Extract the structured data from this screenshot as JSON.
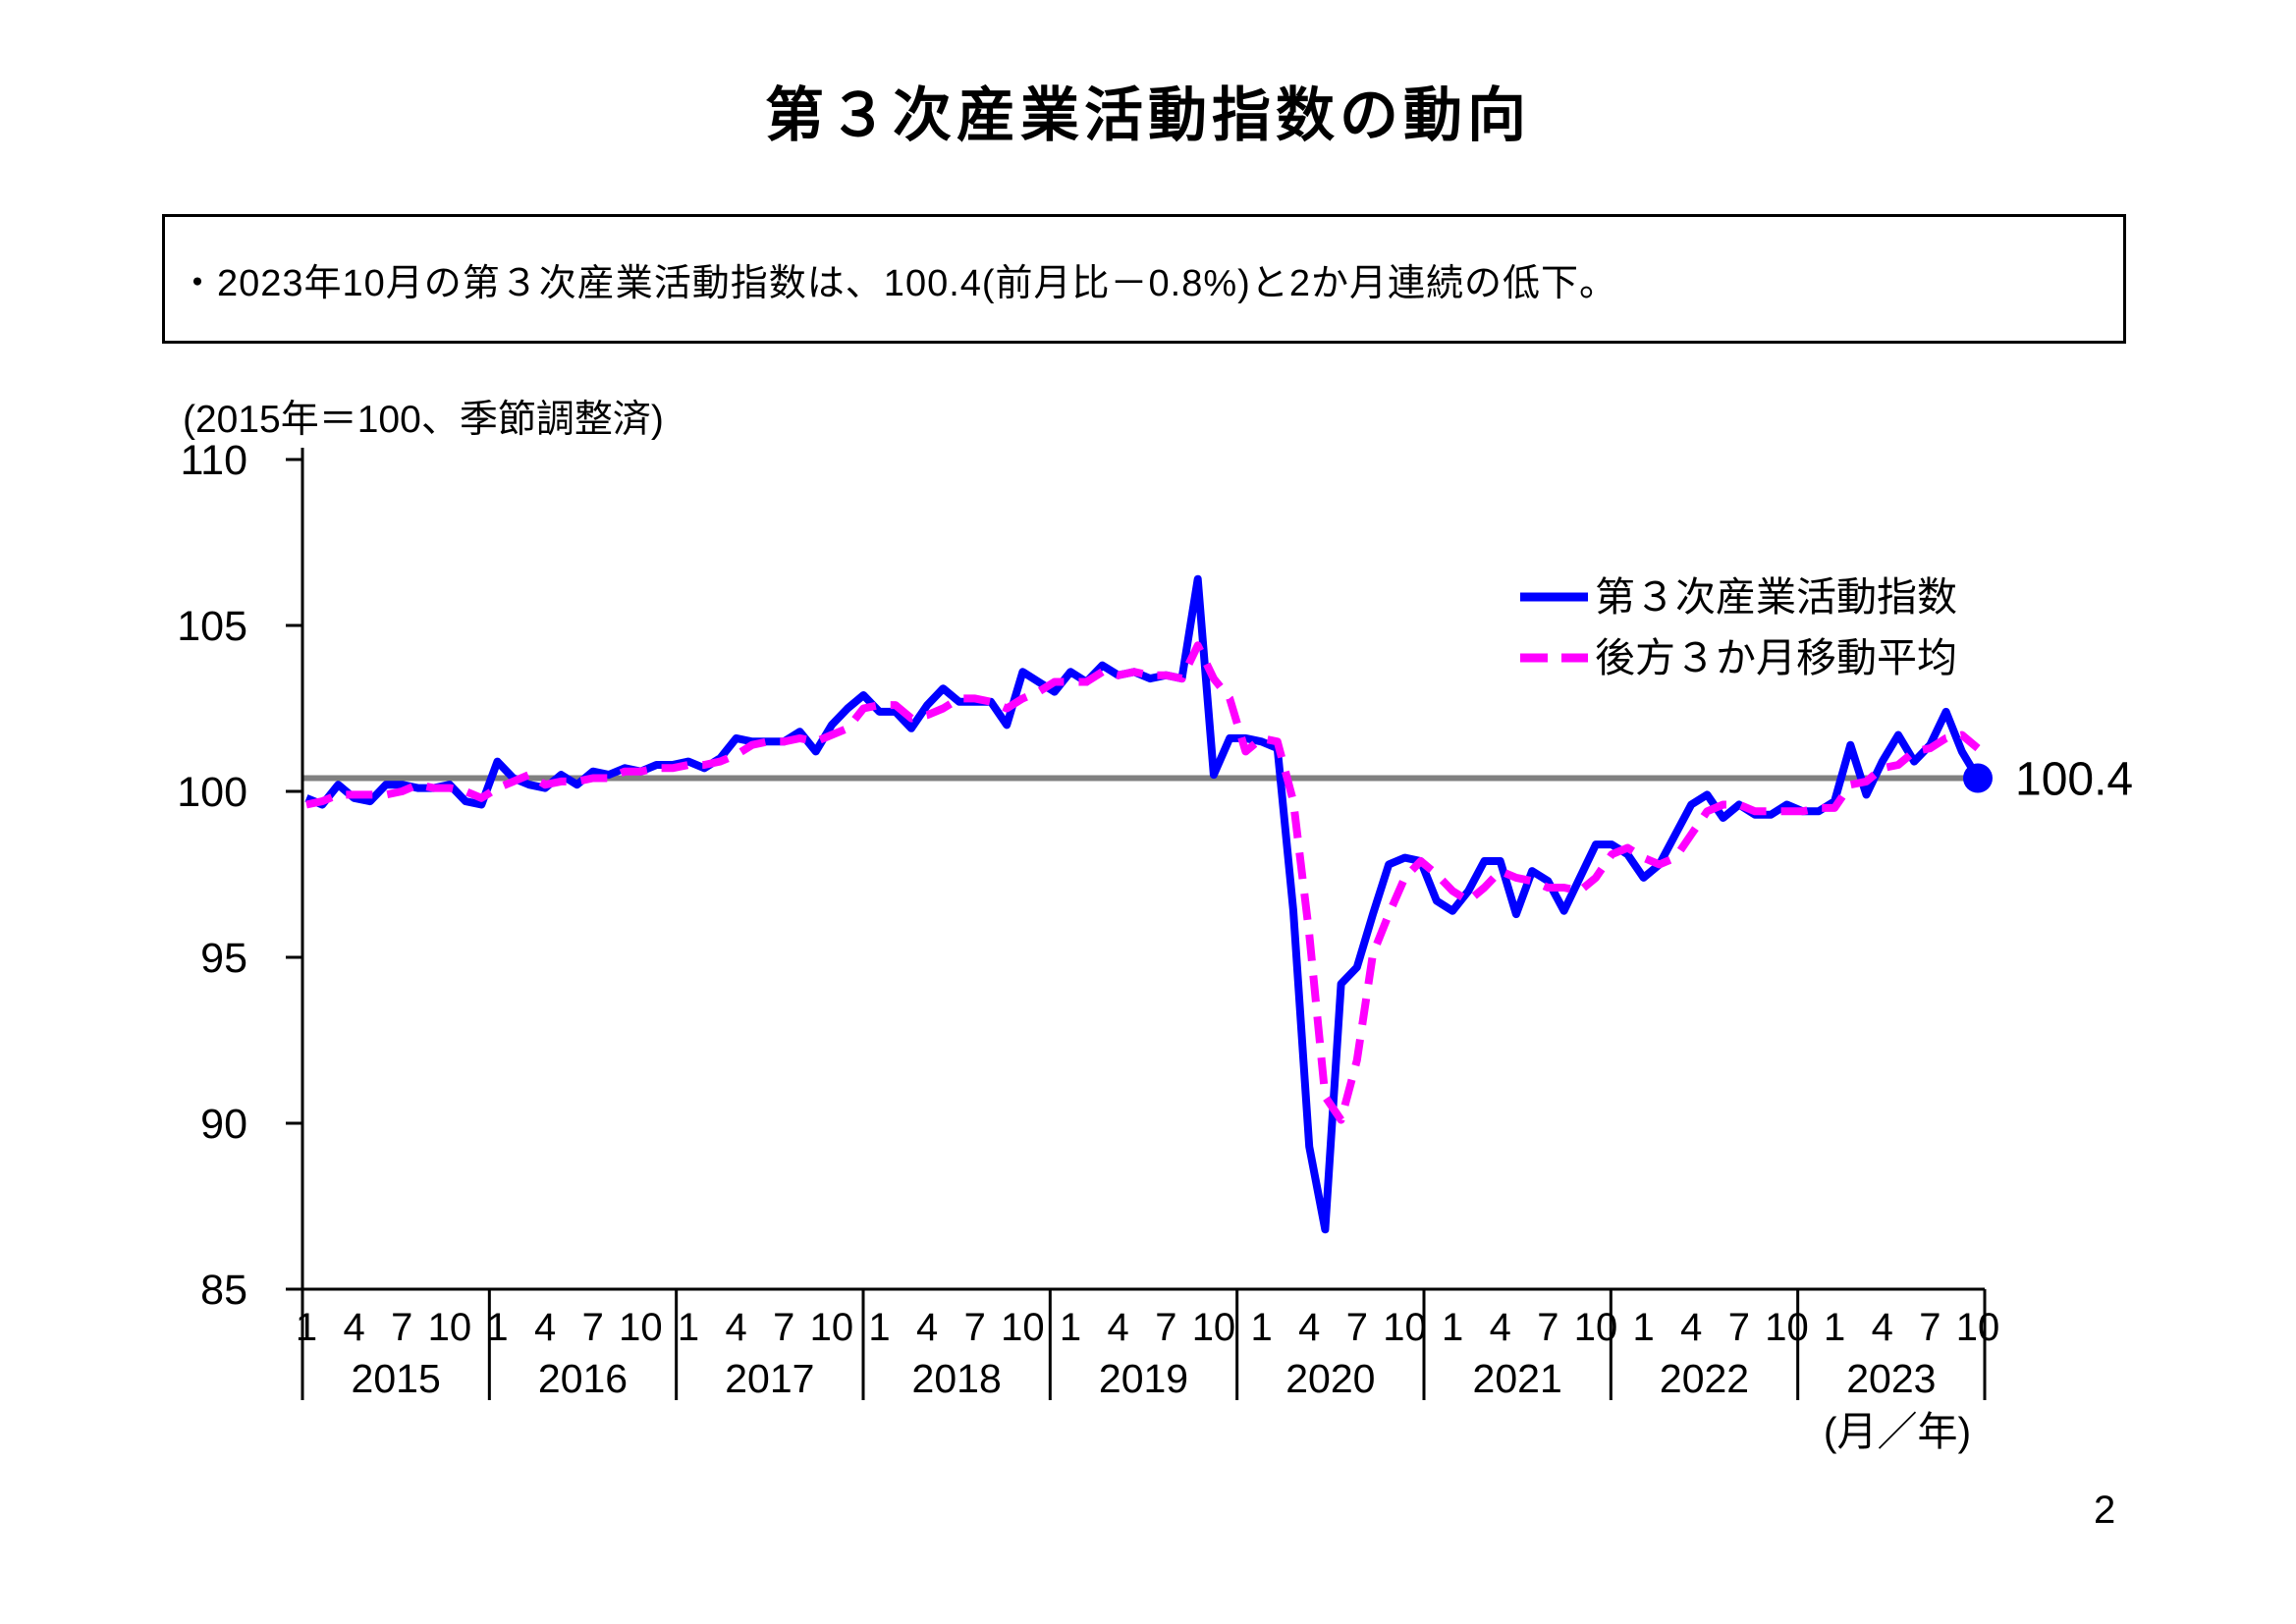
{
  "page": {
    "title": "第３次産業活動指数の動向",
    "summary": "・2023年10月の第３次産業活動指数は、100.4(前月比－0.8%)と2か月連続の低下。",
    "page_number": "2"
  },
  "chart": {
    "unit_note": "(2015年＝100、季節調整済)",
    "x_axis_unit_label": "(月／年)",
    "colors": {
      "index_line": "#0000ff",
      "moving_average_line": "#ff00ff",
      "reference_line": "#808080",
      "axis": "#000000"
    }
  },
  "chart_data": {
    "type": "line",
    "title": "第３次産業活動指数の動向",
    "ylim": [
      85,
      110
    ],
    "y_ticks": [
      85,
      90,
      95,
      100,
      105,
      110
    ],
    "years": [
      "2015",
      "2016",
      "2017",
      "2018",
      "2019",
      "2020",
      "2021",
      "2022",
      "2023"
    ],
    "month_tick_labels": [
      "1",
      "4",
      "7",
      "10"
    ],
    "months_per_year": 12,
    "last_year_months": 10,
    "x_start": "2015-01",
    "x_end": "2023-10",
    "grid": "off",
    "legend_position": "inside-top-right",
    "reference_line_value": 100.4,
    "latest_point": {
      "year": "2023",
      "month": "10",
      "value": 100.4,
      "label": "100.4"
    },
    "series": [
      {
        "name": "第３次産業活動指数",
        "color": "#0000ff",
        "style": "solid",
        "values": [
          99.8,
          99.6,
          100.2,
          99.8,
          99.7,
          100.2,
          100.2,
          100.1,
          100.1,
          100.2,
          99.7,
          99.6,
          100.9,
          100.4,
          100.2,
          100.1,
          100.5,
          100.2,
          100.6,
          100.5,
          100.7,
          100.6,
          100.8,
          100.8,
          100.9,
          100.7,
          101.0,
          101.6,
          101.5,
          101.5,
          101.5,
          101.8,
          101.2,
          102.0,
          102.5,
          102.9,
          102.4,
          102.4,
          101.9,
          102.6,
          103.1,
          102.7,
          102.7,
          102.7,
          102.0,
          103.6,
          103.3,
          103.0,
          103.6,
          103.3,
          103.8,
          103.5,
          103.6,
          103.4,
          103.5,
          103.4,
          106.4,
          100.5,
          101.6,
          101.6,
          101.5,
          101.3,
          96.4,
          89.3,
          86.8,
          94.2,
          94.7,
          96.3,
          97.8,
          98.0,
          97.9,
          96.7,
          96.4,
          97.0,
          97.9,
          97.9,
          96.3,
          97.6,
          97.3,
          96.4,
          97.4,
          98.4,
          98.4,
          98.1,
          97.4,
          97.8,
          98.7,
          99.6,
          99.9,
          99.2,
          99.6,
          99.3,
          99.3,
          99.6,
          99.4,
          99.4,
          99.7,
          101.4,
          99.9,
          100.9,
          101.7,
          100.9,
          101.4,
          102.4,
          101.2,
          100.4
        ]
      },
      {
        "name": "後方３か月移動平均",
        "color": "#ff00ff",
        "style": "dashed",
        "note": "backward 3-month moving average of the index",
        "values": [
          99.6,
          99.7,
          99.9,
          99.9,
          99.9,
          99.9,
          100.0,
          100.2,
          100.1,
          100.1,
          100.0,
          99.8,
          100.1,
          100.3,
          100.5,
          100.2,
          100.3,
          100.3,
          100.4,
          100.4,
          100.6,
          100.6,
          100.7,
          100.7,
          100.8,
          100.8,
          100.9,
          101.1,
          101.4,
          101.5,
          101.5,
          101.6,
          101.5,
          101.7,
          101.9,
          102.5,
          102.6,
          102.6,
          102.2,
          102.3,
          102.5,
          102.8,
          102.8,
          102.7,
          102.5,
          102.8,
          103.0,
          103.3,
          103.3,
          103.3,
          103.6,
          103.5,
          103.6,
          103.5,
          103.5,
          103.4,
          104.4,
          103.4,
          102.8,
          101.2,
          101.6,
          101.5,
          99.7,
          95.7,
          90.8,
          90.1,
          91.9,
          95.1,
          96.3,
          97.4,
          97.9,
          97.5,
          97.0,
          96.7,
          97.1,
          97.6,
          97.4,
          97.3,
          97.1,
          97.1,
          97.0,
          97.4,
          98.1,
          98.3,
          98.0,
          97.8,
          98.0,
          98.7,
          99.4,
          99.6,
          99.6,
          99.4,
          99.4,
          99.4,
          99.4,
          99.5,
          99.5,
          100.2,
          100.3,
          100.7,
          100.8,
          101.2,
          101.3,
          101.6,
          101.7,
          101.3
        ]
      }
    ]
  }
}
